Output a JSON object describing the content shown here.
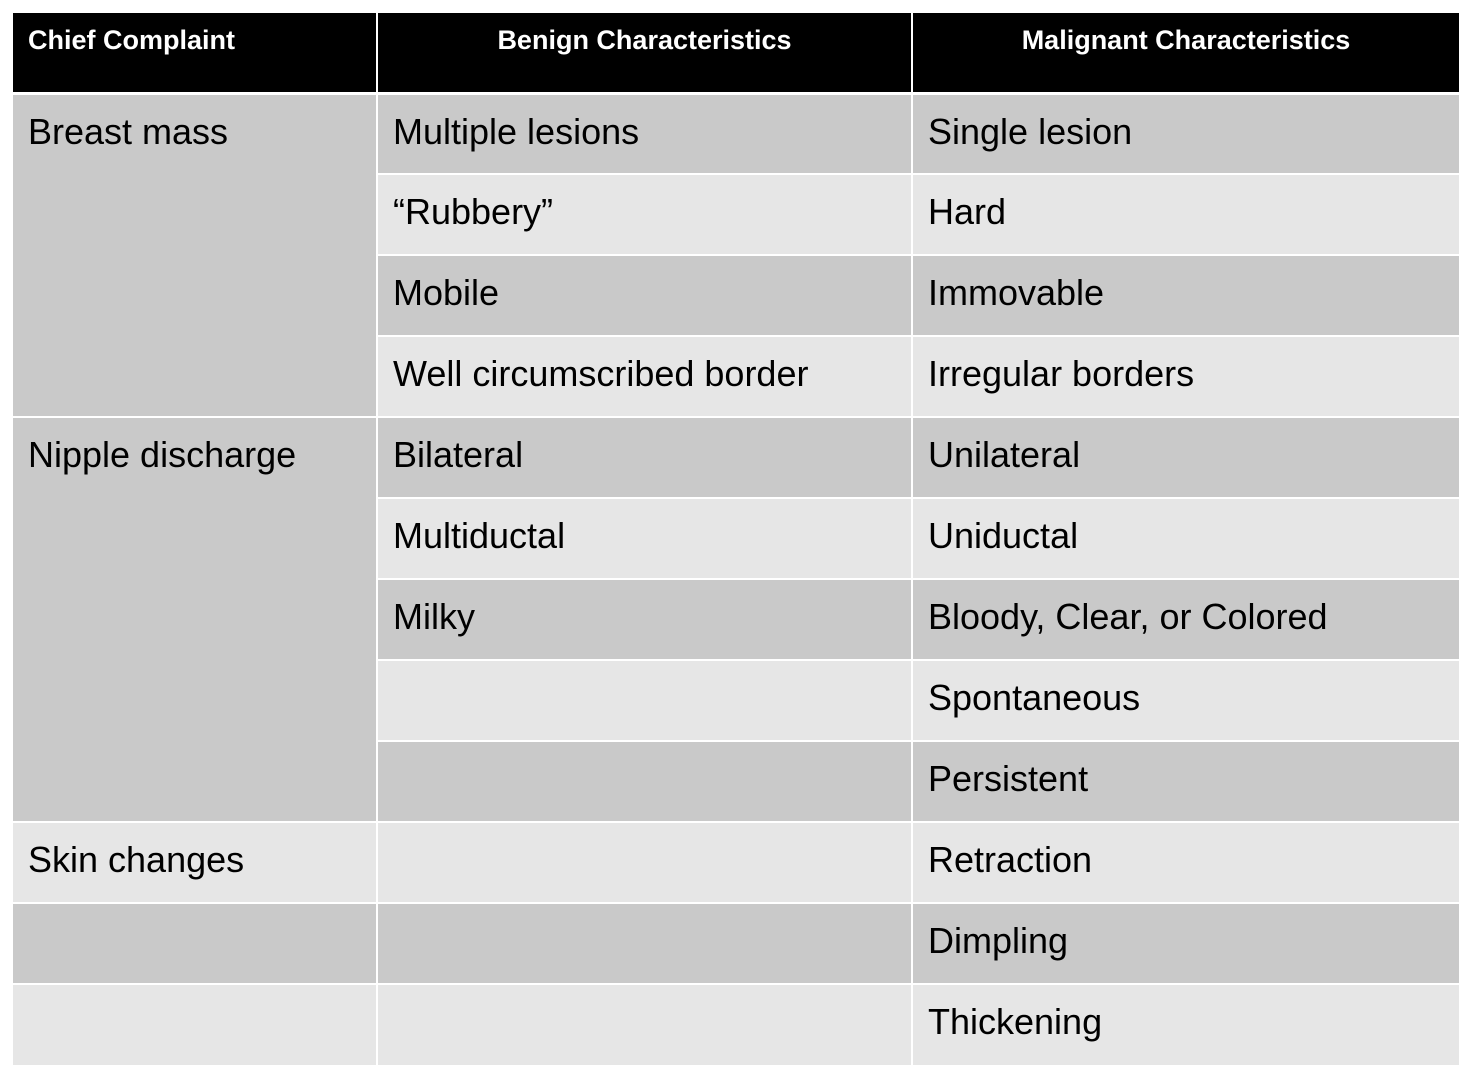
{
  "headers": {
    "complaint": "Chief Complaint",
    "benign": "Benign Characteristics",
    "malignant": "Malignant Characteristics"
  },
  "complaints": {
    "breast_mass": "Breast mass",
    "nipple_discharge": "Nipple discharge",
    "skin_changes": "Skin changes"
  },
  "benign": [
    "Multiple lesions",
    "“Rubbery”",
    "Mobile",
    "Well circumscribed border",
    "Bilateral",
    "Multiductal",
    "Milky"
  ],
  "malignant": [
    "Single lesion",
    "Hard",
    "Immovable",
    "Irregular borders",
    "Unilateral",
    "Uniductal",
    "Bloody, Clear, or Colored",
    "Spontaneous",
    "Persistent",
    "Retraction",
    "Dimpling",
    "Thickening"
  ]
}
